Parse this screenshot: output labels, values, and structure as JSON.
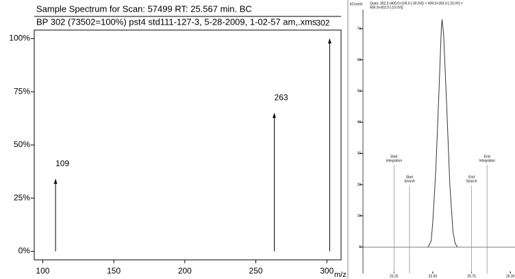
{
  "chart_data": [
    {
      "type": "bar",
      "title": "Sample Spectrum for Scan: 57499 RT: 25.567 min. BC",
      "subtitle": "BP 302 (73502=100%) pst4 std111-127-3, 5-28-2009, 1-02-57 am,.xms",
      "x_label": "m/z",
      "x": [
        109,
        263,
        302
      ],
      "values": [
        34,
        65,
        100
      ],
      "color": "#000000",
      "xlim": [
        94,
        310
      ],
      "xticks": [
        100,
        150,
        200,
        250,
        300
      ],
      "ylim": [
        -4,
        104
      ],
      "yticks": [
        {
          "value": 0,
          "label": "0%"
        },
        {
          "value": 25,
          "label": "25%"
        },
        {
          "value": 50,
          "label": "50%"
        },
        {
          "value": 75,
          "label": "75%"
        },
        {
          "value": 100,
          "label": "100%"
        }
      ]
    },
    {
      "type": "line",
      "y_label": "kCounts",
      "subtitle": [
        "Quan: 302.0 (409.0>109.0 [-30.0V]) + 409.0>263.0 [-20.0V] +",
        "409.0>302.0 [-10.0V])"
      ],
      "x": [
        25.47,
        25.49,
        25.5,
        25.52,
        25.54,
        25.555,
        25.56,
        25.57,
        25.59,
        25.61,
        25.63,
        25.645,
        25.66
      ],
      "values": [
        0,
        2,
        8,
        25,
        50,
        70,
        73,
        68,
        45,
        20,
        5,
        1,
        0
      ],
      "color": "#333333",
      "xlim": [
        25.05,
        26.03
      ],
      "xticks": [
        25.25,
        {
          "value": 25.5,
          "label": "25.50"
        },
        25.75,
        {
          "value": 26,
          "label": "26.00"
        }
      ],
      "ylim": [
        -8.5,
        77
      ],
      "yticks": [
        0,
        10,
        20,
        30,
        40,
        50,
        60,
        70
      ],
      "annotations": [
        {
          "lines": [
            "Start",
            "Integration"
          ],
          "x": 25.25
        },
        {
          "lines": [
            "Start",
            "Search"
          ],
          "x": 25.35
        },
        {
          "lines": [
            "End",
            "Search"
          ],
          "x": 25.75
        },
        {
          "lines": [
            "End",
            "Integration"
          ],
          "x": 25.85
        }
      ]
    }
  ]
}
